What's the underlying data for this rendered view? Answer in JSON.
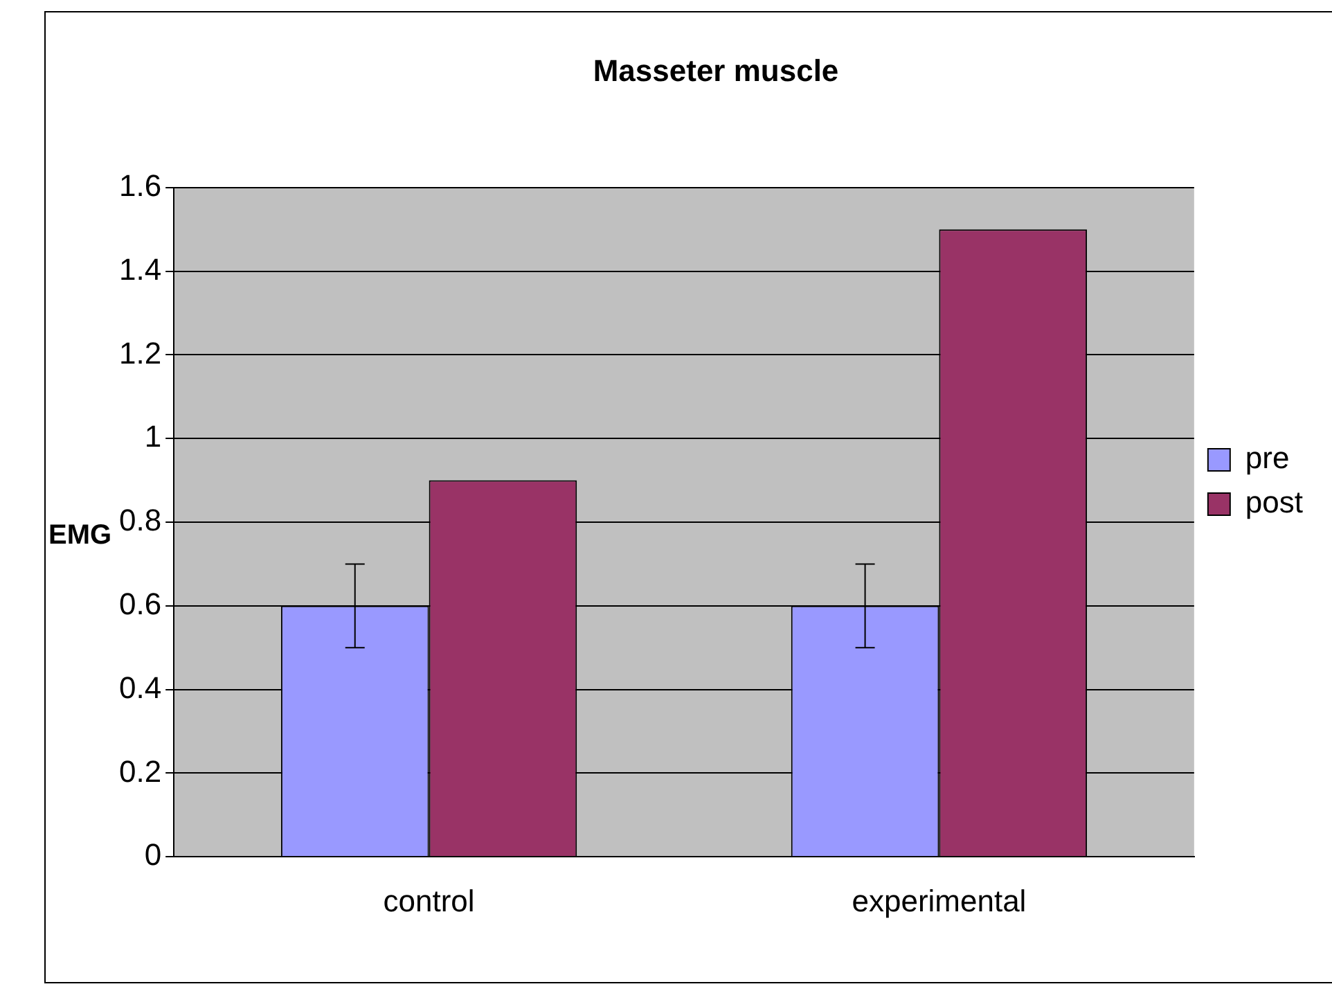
{
  "chart_data": {
    "type": "bar",
    "title": "Masseter muscle",
    "ylabel": "EMG",
    "categories": [
      "control",
      "experimental"
    ],
    "series": [
      {
        "name": "pre",
        "color": "#9999ff",
        "values": [
          0.6,
          0.6
        ],
        "errors": [
          0.1,
          0.1
        ]
      },
      {
        "name": "post",
        "color": "#993366",
        "values": [
          0.9,
          1.5
        ]
      }
    ],
    "ylim": [
      0,
      1.6
    ],
    "yticks": [
      0,
      0.2,
      0.4,
      0.6,
      0.8,
      1,
      1.2,
      1.4,
      1.6
    ],
    "grid": "y",
    "legend": "right"
  }
}
